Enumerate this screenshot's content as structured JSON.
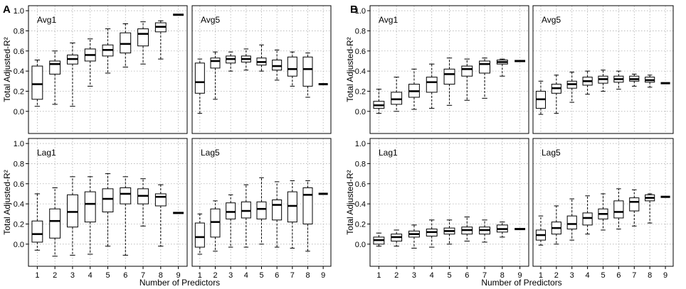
{
  "chart_data": {
    "type": "boxplot",
    "title": "",
    "xlabel": "Number of Predictors",
    "ylabel": "Total Adjusted-R²",
    "x_ticks": [
      "1",
      "2",
      "3",
      "4",
      "5",
      "6",
      "7",
      "8",
      "9"
    ],
    "y_ticks": [
      "0.0",
      "0.2",
      "0.4",
      "0.6",
      "0.8",
      "1.0"
    ],
    "ylim": [
      -0.22,
      1.05
    ],
    "grid": true,
    "boxes_stats_order": [
      "lower_whisker",
      "q1",
      "median",
      "q3",
      "upper_whisker"
    ],
    "panels": [
      {
        "group": "A",
        "name": "Avg1",
        "boxes": [
          [
            0.05,
            0.12,
            0.27,
            0.45,
            0.51
          ],
          [
            0.07,
            0.37,
            0.47,
            0.5,
            0.6
          ],
          [
            0.05,
            0.47,
            0.52,
            0.56,
            0.68
          ],
          [
            0.25,
            0.5,
            0.56,
            0.62,
            0.72
          ],
          [
            0.38,
            0.55,
            0.61,
            0.66,
            0.82
          ],
          [
            0.44,
            0.58,
            0.67,
            0.78,
            0.87
          ],
          [
            0.47,
            0.65,
            0.77,
            0.82,
            0.89
          ],
          [
            0.52,
            0.79,
            0.84,
            0.88,
            0.9
          ],
          [
            0.96,
            0.96,
            0.96,
            0.96,
            0.96
          ]
        ]
      },
      {
        "group": "A",
        "name": "Avg5",
        "boxes": [
          [
            -0.02,
            0.18,
            0.29,
            0.48,
            0.52
          ],
          [
            0.12,
            0.43,
            0.5,
            0.53,
            0.59
          ],
          [
            0.4,
            0.48,
            0.52,
            0.55,
            0.59
          ],
          [
            0.41,
            0.49,
            0.52,
            0.55,
            0.62
          ],
          [
            0.4,
            0.46,
            0.49,
            0.53,
            0.66
          ],
          [
            0.31,
            0.41,
            0.45,
            0.51,
            0.61
          ],
          [
            0.25,
            0.35,
            0.42,
            0.54,
            0.59
          ],
          [
            0.14,
            0.25,
            0.42,
            0.54,
            0.58
          ],
          [
            0.27,
            0.27,
            0.27,
            0.27,
            0.27
          ]
        ]
      },
      {
        "group": "A",
        "name": "Lag1",
        "boxes": [
          [
            -0.06,
            0.02,
            0.1,
            0.23,
            0.5
          ],
          [
            -0.12,
            0.06,
            0.23,
            0.35,
            0.56
          ],
          [
            -0.11,
            0.17,
            0.32,
            0.49,
            0.67
          ],
          [
            -0.1,
            0.22,
            0.4,
            0.52,
            0.67
          ],
          [
            -0.02,
            0.32,
            0.45,
            0.55,
            0.7
          ],
          [
            -0.11,
            0.4,
            0.5,
            0.56,
            0.67
          ],
          [
            0.18,
            0.4,
            0.48,
            0.55,
            0.65
          ],
          [
            -0.02,
            0.38,
            0.47,
            0.5,
            0.59
          ],
          [
            0.31,
            0.31,
            0.31,
            0.31,
            0.31
          ]
        ]
      },
      {
        "group": "A",
        "name": "Lag5",
        "boxes": [
          [
            -0.1,
            -0.03,
            0.07,
            0.21,
            0.3
          ],
          [
            -0.07,
            0.07,
            0.22,
            0.35,
            0.43
          ],
          [
            -0.03,
            0.25,
            0.32,
            0.41,
            0.49
          ],
          [
            -0.03,
            0.26,
            0.33,
            0.42,
            0.59
          ],
          [
            0.0,
            0.25,
            0.35,
            0.42,
            0.66
          ],
          [
            -0.03,
            0.24,
            0.39,
            0.44,
            0.62
          ],
          [
            -0.04,
            0.22,
            0.38,
            0.52,
            0.63
          ],
          [
            -0.07,
            0.2,
            0.49,
            0.56,
            0.63
          ],
          [
            0.5,
            0.5,
            0.5,
            0.5,
            0.5
          ]
        ]
      },
      {
        "group": "B",
        "name": "Avg1",
        "boxes": [
          [
            -0.02,
            0.03,
            0.06,
            0.1,
            0.22
          ],
          [
            0.0,
            0.07,
            0.12,
            0.19,
            0.34
          ],
          [
            0.02,
            0.14,
            0.2,
            0.27,
            0.42
          ],
          [
            0.03,
            0.19,
            0.29,
            0.34,
            0.47
          ],
          [
            0.06,
            0.27,
            0.37,
            0.42,
            0.53
          ],
          [
            0.11,
            0.35,
            0.42,
            0.45,
            0.52
          ],
          [
            0.13,
            0.38,
            0.47,
            0.5,
            0.53
          ],
          [
            0.35,
            0.47,
            0.49,
            0.51,
            0.52
          ],
          [
            0.5,
            0.5,
            0.5,
            0.5,
            0.5
          ]
        ]
      },
      {
        "group": "B",
        "name": "Avg5",
        "boxes": [
          [
            -0.03,
            0.03,
            0.12,
            0.2,
            0.3
          ],
          [
            -0.02,
            0.18,
            0.23,
            0.27,
            0.36
          ],
          [
            0.09,
            0.23,
            0.27,
            0.3,
            0.39
          ],
          [
            0.17,
            0.26,
            0.3,
            0.34,
            0.4
          ],
          [
            0.2,
            0.28,
            0.32,
            0.35,
            0.41
          ],
          [
            0.22,
            0.29,
            0.32,
            0.35,
            0.4
          ],
          [
            0.25,
            0.3,
            0.32,
            0.35,
            0.37
          ],
          [
            0.24,
            0.29,
            0.31,
            0.34,
            0.36
          ],
          [
            0.28,
            0.28,
            0.28,
            0.28,
            0.28
          ]
        ]
      },
      {
        "group": "B",
        "name": "Lag1",
        "boxes": [
          [
            -0.02,
            0.0,
            0.04,
            0.07,
            0.11
          ],
          [
            -0.02,
            0.03,
            0.07,
            0.1,
            0.14
          ],
          [
            -0.04,
            0.07,
            0.1,
            0.13,
            0.19
          ],
          [
            -0.03,
            0.08,
            0.12,
            0.15,
            0.24
          ],
          [
            0.0,
            0.1,
            0.13,
            0.16,
            0.24
          ],
          [
            0.03,
            0.1,
            0.14,
            0.17,
            0.27
          ],
          [
            0.02,
            0.1,
            0.14,
            0.17,
            0.24
          ],
          [
            0.07,
            0.12,
            0.15,
            0.19,
            0.22
          ],
          [
            0.15,
            0.15,
            0.15,
            0.15,
            0.15
          ]
        ]
      },
      {
        "group": "B",
        "name": "Lag5",
        "boxes": [
          [
            -0.01,
            0.04,
            0.09,
            0.14,
            0.28
          ],
          [
            0.0,
            0.1,
            0.16,
            0.22,
            0.38
          ],
          [
            0.04,
            0.15,
            0.2,
            0.28,
            0.45
          ],
          [
            0.1,
            0.19,
            0.26,
            0.31,
            0.48
          ],
          [
            0.14,
            0.25,
            0.3,
            0.35,
            0.5
          ],
          [
            0.15,
            0.26,
            0.32,
            0.43,
            0.55
          ],
          [
            0.18,
            0.33,
            0.42,
            0.46,
            0.54
          ],
          [
            0.21,
            0.43,
            0.46,
            0.49,
            0.5
          ],
          [
            0.47,
            0.47,
            0.47,
            0.47,
            0.47
          ]
        ]
      }
    ]
  },
  "panel_labels": [
    "A",
    "B"
  ]
}
